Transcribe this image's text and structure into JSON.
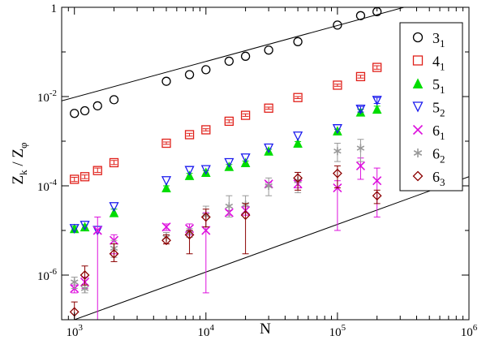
{
  "chart_data": {
    "type": "scatter",
    "title": "",
    "xlabel": "N",
    "ylabel_main": "Z",
    "ylabel_sub_num": "k",
    "ylabel_mid": " / Z",
    "ylabel_sub_den": "φ",
    "xscale": "log",
    "yscale": "log",
    "xlim": [
      800,
      1000000
    ],
    "ylim": [
      1e-07,
      1
    ],
    "x_ticks": [
      {
        "value": 1000,
        "base": "10",
        "exp": "3"
      },
      {
        "value": 10000,
        "base": "10",
        "exp": "4"
      },
      {
        "value": 100000,
        "base": "10",
        "exp": "5"
      },
      {
        "value": 1000000,
        "base": "10",
        "exp": "6"
      }
    ],
    "y_ticks": [
      {
        "value": 1,
        "label": "1",
        "base": "",
        "exp": ""
      },
      {
        "value": 0.01,
        "label": "",
        "base": "10",
        "exp": "-2"
      },
      {
        "value": 0.0001,
        "label": "",
        "base": "10",
        "exp": "-4"
      },
      {
        "value": 1e-06,
        "label": "",
        "base": "10",
        "exp": "-6"
      }
    ],
    "legend_position": "right",
    "grid": false,
    "reference_lines": [
      {
        "x": [
          800,
          1000000
        ],
        "y": [
          0.008,
          2.5
        ]
      },
      {
        "x": [
          1000,
          1000000
        ],
        "y": [
          1e-07,
          0.00016
        ]
      }
    ],
    "series": [
      {
        "name": "3",
        "sub": "1",
        "marker": "circle",
        "color": "#000000",
        "points": [
          [
            1000,
            0.0042
          ],
          [
            1200,
            0.0048
          ],
          [
            1500,
            0.0062
          ],
          [
            2000,
            0.0085
          ],
          [
            5000,
            0.022
          ],
          [
            7500,
            0.031
          ],
          [
            10000,
            0.04
          ],
          [
            15000,
            0.062
          ],
          [
            20000,
            0.08
          ],
          [
            30000,
            0.11
          ],
          [
            50000,
            0.17
          ],
          [
            100000,
            0.4
          ],
          [
            150000,
            0.65
          ],
          [
            200000,
            0.8
          ]
        ],
        "errors": [
          [
            0.0042,
            0.0042
          ],
          [
            0.0048,
            0.0048
          ],
          [
            0.0062,
            0.0062
          ],
          [
            0.0085,
            0.0085
          ],
          [
            0.022,
            0.022
          ],
          [
            0.031,
            0.031
          ],
          [
            0.04,
            0.04
          ],
          [
            0.062,
            0.062
          ],
          [
            0.08,
            0.08
          ],
          [
            0.11,
            0.11
          ],
          [
            0.17,
            0.17
          ],
          [
            0.4,
            0.4
          ],
          [
            0.65,
            0.65
          ],
          [
            0.8,
            0.8
          ]
        ]
      },
      {
        "name": "4",
        "sub": "1",
        "marker": "square",
        "color": "#e0201a",
        "points": [
          [
            1000,
            0.00014
          ],
          [
            1200,
            0.00016
          ],
          [
            1500,
            0.00022
          ],
          [
            2000,
            0.00033
          ],
          [
            5000,
            0.0009
          ],
          [
            7500,
            0.0014
          ],
          [
            10000,
            0.0018
          ],
          [
            15000,
            0.0028
          ],
          [
            20000,
            0.0038
          ],
          [
            30000,
            0.0055
          ],
          [
            50000,
            0.0095
          ],
          [
            100000,
            0.018
          ],
          [
            150000,
            0.028
          ],
          [
            200000,
            0.045
          ]
        ],
        "errors": [
          [
            0.000125,
            0.000155
          ],
          [
            0.000145,
            0.000175
          ],
          [
            0.0002,
            0.00025
          ],
          [
            0.0003,
            0.00037
          ],
          [
            0.00085,
            0.00096
          ],
          [
            0.0013,
            0.0015
          ],
          [
            0.0017,
            0.0019
          ],
          [
            0.0026,
            0.003
          ],
          [
            0.0036,
            0.0041
          ],
          [
            0.0052,
            0.0058
          ],
          [
            0.009,
            0.01
          ],
          [
            0.017,
            0.019
          ],
          [
            0.026,
            0.03
          ],
          [
            0.041,
            0.049
          ]
        ]
      },
      {
        "name": "5",
        "sub": "1",
        "marker": "triangle-up",
        "color": "#00dd00",
        "points": [
          [
            1000,
            1.1e-05
          ],
          [
            1200,
            1.2e-05
          ],
          [
            2000,
            2.5e-05
          ],
          [
            5000,
            9e-05
          ],
          [
            7500,
            0.00017
          ],
          [
            10000,
            0.0002
          ],
          [
            15000,
            0.00027
          ],
          [
            20000,
            0.00033
          ],
          [
            30000,
            0.0006
          ],
          [
            50000,
            0.0009
          ],
          [
            100000,
            0.0017
          ],
          [
            150000,
            0.0045
          ],
          [
            200000,
            0.0052
          ]
        ],
        "errors": [
          [
            9.5e-06,
            1.25e-05
          ],
          [
            1.05e-05,
            1.35e-05
          ],
          [
            2.1e-05,
            3e-05
          ],
          [
            8e-05,
            0.0001
          ],
          [
            0.00015,
            0.00019
          ],
          [
            0.00018,
            0.00022
          ],
          [
            0.00024,
            0.0003
          ],
          [
            0.0003,
            0.00036
          ],
          [
            0.00055,
            0.00066
          ],
          [
            0.00082,
            0.00098
          ],
          [
            0.00155,
            0.00185
          ],
          [
            0.0038,
            0.0052
          ],
          [
            0.0043,
            0.0061
          ]
        ]
      },
      {
        "name": "5",
        "sub": "2",
        "marker": "triangle-down",
        "color": "#1a1aee",
        "points": [
          [
            1000,
            1.1e-05
          ],
          [
            1200,
            1.3e-05
          ],
          [
            1500,
            1e-05
          ],
          [
            2000,
            3.4e-05
          ],
          [
            5000,
            0.00013
          ],
          [
            7500,
            0.00022
          ],
          [
            10000,
            0.00023
          ],
          [
            15000,
            0.00033
          ],
          [
            20000,
            0.00042
          ],
          [
            30000,
            0.0007
          ],
          [
            50000,
            0.0013
          ],
          [
            100000,
            0.0019
          ],
          [
            150000,
            0.0052
          ],
          [
            200000,
            0.0082
          ]
        ],
        "errors": [
          [
            1.1e-05,
            1.1e-05
          ],
          [
            1.3e-05,
            1.3e-05
          ],
          [
            1e-05,
            1e-05
          ],
          [
            3.4e-05,
            3.4e-05
          ],
          [
            0.00013,
            0.00013
          ],
          [
            0.00022,
            0.00022
          ],
          [
            0.00023,
            0.00023
          ],
          [
            0.00033,
            0.00033
          ],
          [
            0.00042,
            0.00042
          ],
          [
            0.0007,
            0.0007
          ],
          [
            0.0013,
            0.0013
          ],
          [
            0.0019,
            0.0019
          ],
          [
            0.0045,
            0.006
          ],
          [
            0.007,
            0.0095
          ]
        ]
      },
      {
        "name": "6",
        "sub": "1",
        "marker": "x",
        "color": "#dd11dd",
        "points": [
          [
            1000,
            5e-07
          ],
          [
            1200,
            7e-07
          ],
          [
            1500,
            1e-05
          ],
          [
            2000,
            6e-06
          ],
          [
            5000,
            1.2e-05
          ],
          [
            7500,
            1.1e-05
          ],
          [
            10000,
            1e-05
          ],
          [
            15000,
            2.5e-05
          ],
          [
            20000,
            2.8e-05
          ],
          [
            30000,
            0.00011
          ],
          [
            50000,
            0.00011
          ],
          [
            100000,
            9e-05
          ],
          [
            150000,
            0.00028
          ],
          [
            200000,
            0.00013
          ]
        ],
        "errors": [
          [
            4e-07,
            6e-07
          ],
          [
            5e-07,
            9e-07
          ],
          [
            1e-07,
            2e-05
          ],
          [
            3e-06,
            8e-06
          ],
          [
            1e-05,
            1.4e-05
          ],
          [
            8e-06,
            1.4e-05
          ],
          [
            4e-07,
            2.5e-05
          ],
          [
            2.2e-05,
            2.8e-05
          ],
          [
            2.2e-05,
            3.4e-05
          ],
          [
            0.0001,
            0.00012
          ],
          [
            9e-05,
            0.00013
          ],
          [
            1e-05,
            0.00013
          ],
          [
            0.00014,
            0.00042
          ],
          [
            2e-05,
            0.00025
          ]
        ]
      },
      {
        "name": "6",
        "sub": "2",
        "marker": "asterisk",
        "color": "#999999",
        "points": [
          [
            1000,
            7e-07
          ],
          [
            1200,
            5e-07
          ],
          [
            2000,
            4e-06
          ],
          [
            5000,
            7e-06
          ],
          [
            7500,
            9e-06
          ],
          [
            10000,
            2.2e-05
          ],
          [
            15000,
            3.5e-05
          ],
          [
            20000,
            3.8e-05
          ],
          [
            30000,
            0.0001
          ],
          [
            50000,
            0.00013
          ],
          [
            100000,
            0.0006
          ],
          [
            150000,
            0.0007
          ]
        ],
        "errors": [
          [
            5e-07,
            9e-07
          ],
          [
            4e-07,
            6e-07
          ],
          [
            2.5e-06,
            6e-06
          ],
          [
            5e-06,
            9e-06
          ],
          [
            7e-06,
            1.1e-05
          ],
          [
            1.2e-05,
            3.5e-05
          ],
          [
            2e-05,
            6e-05
          ],
          [
            2.5e-05,
            6e-05
          ],
          [
            6e-05,
            0.00015
          ],
          [
            7e-05,
            0.0002
          ],
          [
            0.00035,
            0.0009
          ],
          [
            0.00035,
            0.0011
          ]
        ]
      },
      {
        "name": "6",
        "sub": "3",
        "marker": "diamond",
        "color": "#8b0000",
        "points": [
          [
            1000,
            1.5e-07
          ],
          [
            1200,
            1e-06
          ],
          [
            2000,
            3e-06
          ],
          [
            5000,
            6e-06
          ],
          [
            7500,
            8e-06
          ],
          [
            10000,
            2e-05
          ],
          [
            20000,
            2.2e-05
          ],
          [
            50000,
            0.00015
          ],
          [
            100000,
            0.00019
          ],
          [
            200000,
            6e-05
          ]
        ],
        "errors": [
          [
            1e-07,
            2.5e-07
          ],
          [
            6e-07,
            1.6e-06
          ],
          [
            2e-06,
            5e-06
          ],
          [
            5e-06,
            8e-06
          ],
          [
            3e-06,
            1e-05
          ],
          [
            1.2e-05,
            3e-05
          ],
          [
            3e-06,
            4e-05
          ],
          [
            8e-05,
            0.0002
          ],
          [
            9e-05,
            0.00028
          ],
          [
            4e-05,
            8e-05
          ]
        ]
      }
    ]
  }
}
